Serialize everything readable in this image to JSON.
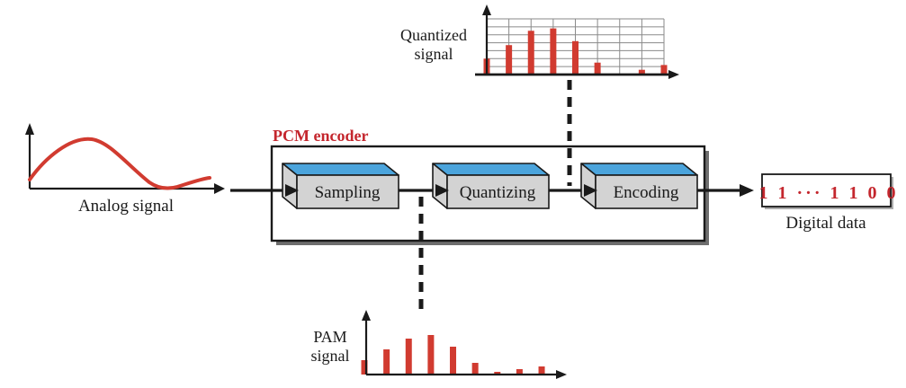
{
  "palette": {
    "signal_red": "#d13b30",
    "label_red": "#c4262d",
    "box_top_blue": "#4ba4dc",
    "box_face_gray": "#d3d3d3",
    "grid_gray": "#8a8a8a",
    "shadow_gray": "#6e6e6e",
    "ink": "#1a1a1a"
  },
  "analog": {
    "label": "Analog signal"
  },
  "encoder": {
    "title": "PCM encoder",
    "blocks": [
      {
        "label": "Sampling"
      },
      {
        "label": "Quantizing"
      },
      {
        "label": "Encoding"
      }
    ]
  },
  "output": {
    "bits": "1 1 ··· 1 1 0 0",
    "label": "Digital data"
  },
  "quantized": {
    "label_line1": "Quantized",
    "label_line2": "signal"
  },
  "pam": {
    "label_line1": "PAM",
    "label_line2": "signal"
  },
  "chart_data": [
    {
      "name": "quantized-signal",
      "type": "bar",
      "title": "Quantized signal",
      "values": [
        2,
        3.7,
        5.5,
        5.8,
        4.2,
        1.5,
        0,
        0.6,
        1.2
      ],
      "ylim": [
        0,
        7
      ],
      "grid": {
        "rows": 7,
        "cols": 8,
        "visible": true
      },
      "note": "values are quantization levels; bar 7 is zero"
    },
    {
      "name": "pam-signal",
      "type": "bar",
      "title": "PAM signal",
      "values": [
        16,
        28,
        40,
        44,
        31,
        13,
        3,
        6,
        9
      ],
      "unit": "amplitude-px",
      "grid": {
        "visible": false
      }
    },
    {
      "name": "analog-signal",
      "type": "line",
      "title": "Analog signal",
      "description": "smooth red waveform: rises from mid-axis to a peak, dips to near zero, then rises slightly at the end"
    }
  ]
}
